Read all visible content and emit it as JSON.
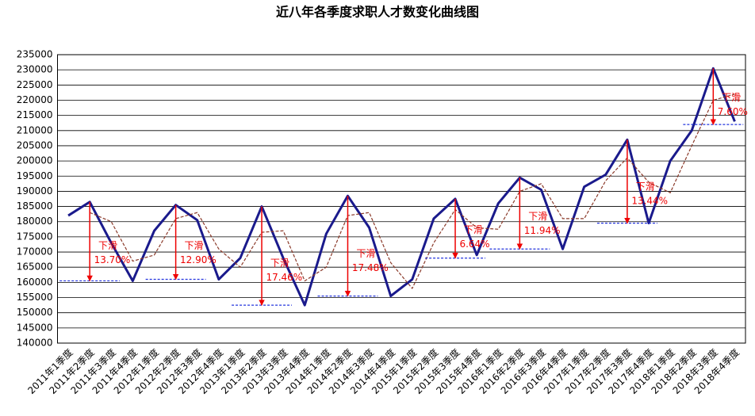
{
  "chart_data": {
    "type": "line",
    "title": "近八年各季度求职人才数变化曲线图",
    "categories": [
      "2011年1季度",
      "2011年2季度",
      "2011年3季度",
      "2011年4季度",
      "2012年1季度",
      "2012年2季度",
      "2012年3季度",
      "2012年4季度",
      "2013年1季度",
      "2013年2季度",
      "2013年3季度",
      "2013年4季度",
      "2014年1季度",
      "2014年2季度",
      "2014年3季度",
      "2014年4季度",
      "2015年1季度",
      "2015年2季度",
      "2015年3季度",
      "2015年4季度",
      "2016年1季度",
      "2016年2季度",
      "2016年3季度",
      "2016年4季度",
      "2017年1季度",
      "2017年2季度",
      "2017年3季度",
      "2017年4季度",
      "2018年1季度",
      "2018年2季度",
      "2018年3季度",
      "2018年4季度"
    ],
    "series": [
      {
        "color": "#1a1a8c",
        "values": [
          182000,
          186500,
          173000,
          160500,
          177000,
          185500,
          180500,
          161000,
          168000,
          185000,
          168000,
          152500,
          176000,
          188500,
          178000,
          155500,
          161000,
          181000,
          187500,
          169000,
          186000,
          194500,
          190500,
          171000,
          191500,
          195500,
          207000,
          179500,
          200000,
          210000,
          230500,
          213000
        ]
      },
      {
        "color": "#8b3a2a",
        "values": [
          null,
          183000,
          180000,
          167000,
          169000,
          181000,
          183000,
          171000,
          165000,
          176500,
          177000,
          160500,
          165000,
          182000,
          183000,
          166500,
          158000,
          173000,
          184000,
          178000,
          177500,
          190000,
          192500,
          181000,
          181000,
          193500,
          201000,
          193000,
          189500,
          205000,
          220000,
          222000
        ]
      }
    ],
    "annotations": [
      {
        "index": 1,
        "level": 160500,
        "text": "下滑",
        "label": "13.70%"
      },
      {
        "index": 5,
        "level": 161000,
        "text": "下滑",
        "label": "12.90%"
      },
      {
        "index": 9,
        "level": 152500,
        "text": "下滑",
        "label": "17.46%"
      },
      {
        "index": 13,
        "level": 155500,
        "text": "下滑",
        "label": "17.48%"
      },
      {
        "index": 18,
        "level": 168000,
        "text": "下滑",
        "label": "6.64%"
      },
      {
        "index": 21,
        "level": 171000,
        "text": "下滑",
        "label": "11.94%"
      },
      {
        "index": 26,
        "level": 179500,
        "text": "下滑",
        "label": "13.44%"
      },
      {
        "index": 30,
        "level": 212000,
        "text": "下滑",
        "label": "7.60%"
      }
    ],
    "ylim": [
      140000,
      235000
    ],
    "yticks": [
      140000,
      145000,
      150000,
      155000,
      160000,
      165000,
      170000,
      175000,
      180000,
      185000,
      190000,
      195000,
      200000,
      205000,
      210000,
      215000,
      220000,
      225000,
      230000,
      235000
    ],
    "grid": true
  }
}
